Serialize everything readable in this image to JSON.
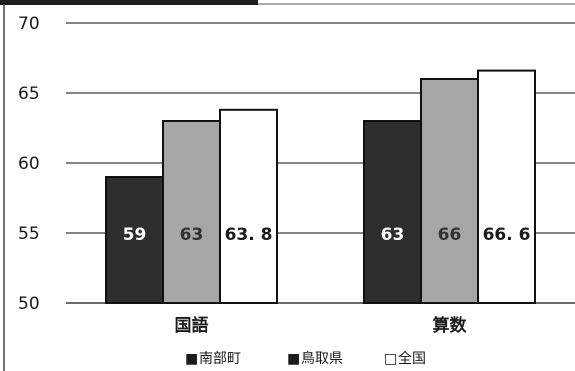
{
  "chart_data": {
    "type": "bar",
    "categories": [
      "国語",
      "算数"
    ],
    "series": [
      {
        "name": "南部町",
        "values": [
          59,
          63
        ],
        "labels": [
          "59",
          "63"
        ],
        "color": "#2e2e2e",
        "label_color": "#ffffff",
        "legend_marker": "■"
      },
      {
        "name": "鳥取県",
        "values": [
          63,
          66
        ],
        "labels": [
          "63",
          "66"
        ],
        "color": "#a6a6a6",
        "label_color": "#333333",
        "legend_marker": "■"
      },
      {
        "name": "全国",
        "values": [
          63.8,
          66.6
        ],
        "labels": [
          "63. 8",
          "66. 6"
        ],
        "color": "#ffffff",
        "label_color": "#1a1a1a",
        "legend_marker": "□"
      }
    ],
    "y_ticks": [
      50,
      55,
      60,
      65,
      70
    ],
    "ylim": [
      50,
      70
    ],
    "grid": true,
    "legend_position": "bottom",
    "title": "",
    "xlabel": "",
    "ylabel": ""
  }
}
